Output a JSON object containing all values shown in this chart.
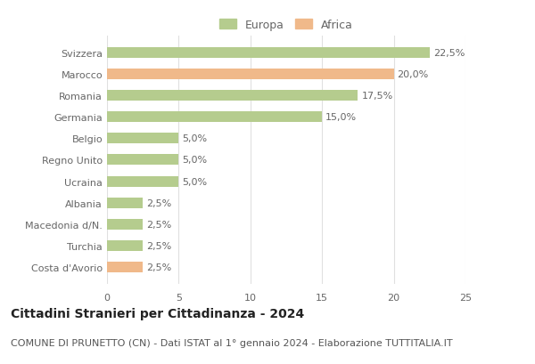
{
  "countries": [
    "Svizzera",
    "Marocco",
    "Romania",
    "Germania",
    "Belgio",
    "Regno Unito",
    "Ucraina",
    "Albania",
    "Macedonia d/N.",
    "Turchia",
    "Costa d'Avorio"
  ],
  "values": [
    22.5,
    20.0,
    17.5,
    15.0,
    5.0,
    5.0,
    5.0,
    2.5,
    2.5,
    2.5,
    2.5
  ],
  "continents": [
    "Europa",
    "Africa",
    "Europa",
    "Europa",
    "Europa",
    "Europa",
    "Europa",
    "Europa",
    "Europa",
    "Europa",
    "Africa"
  ],
  "color_europa": "#b5cc8e",
  "color_africa": "#f0b98a",
  "label_color": "#666666",
  "bg_color": "#ffffff",
  "grid_color": "#e0e0e0",
  "title": "Cittadini Stranieri per Cittadinanza - 2024",
  "subtitle": "COMUNE DI PRUNETTO (CN) - Dati ISTAT al 1° gennaio 2024 - Elaborazione TUTTITALIA.IT",
  "title_fontsize": 10,
  "subtitle_fontsize": 8,
  "bar_label_fontsize": 8,
  "ytick_fontsize": 8,
  "xtick_fontsize": 8,
  "legend_fontsize": 9,
  "xlim": [
    0,
    25
  ],
  "xticks": [
    0,
    5,
    10,
    15,
    20,
    25
  ],
  "bar_height": 0.5
}
